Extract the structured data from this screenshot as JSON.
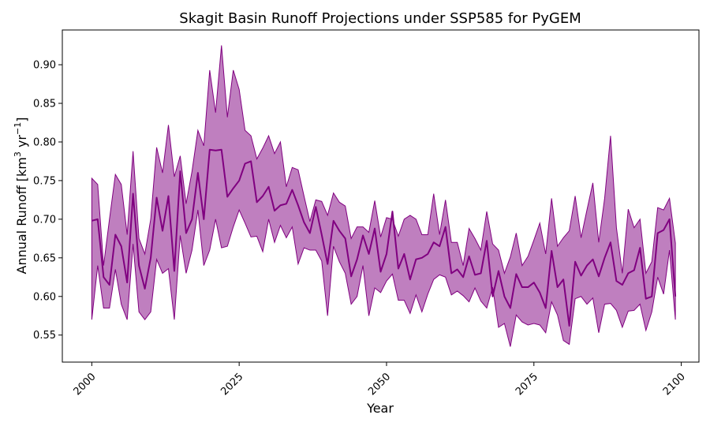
{
  "chart_data": {
    "type": "area",
    "title": "Skagit Basin Runoff Projections under SSP585 for PyGEM",
    "xlabel": "Year",
    "ylabel": {
      "main": "Annual Runoff [km",
      "sup1": "3",
      "mid": " yr",
      "sup2": "−1",
      "end": "]"
    },
    "xlim": [
      1995,
      2103
    ],
    "ylim": [
      0.515,
      0.945
    ],
    "xticks": [
      {
        "value": 2000,
        "label": "2000"
      },
      {
        "value": 2025,
        "label": "2025"
      },
      {
        "value": 2050,
        "label": "2050"
      },
      {
        "value": 2075,
        "label": "2075"
      },
      {
        "value": 2100,
        "label": "2100"
      }
    ],
    "yticks": [
      {
        "value": 0.55,
        "label": "0.55"
      },
      {
        "value": 0.6,
        "label": "0.60"
      },
      {
        "value": 0.65,
        "label": "0.65"
      },
      {
        "value": 0.7,
        "label": "0.70"
      },
      {
        "value": 0.75,
        "label": "0.75"
      },
      {
        "value": 0.8,
        "label": "0.80"
      },
      {
        "value": 0.85,
        "label": "0.85"
      },
      {
        "value": 0.9,
        "label": "0.90"
      }
    ],
    "grid": false,
    "legend": "none",
    "colors": {
      "line": "#800080",
      "band": "#800080",
      "band_opacity": 0.5
    },
    "x": [
      2000,
      2001,
      2002,
      2003,
      2004,
      2005,
      2006,
      2007,
      2008,
      2009,
      2010,
      2011,
      2012,
      2013,
      2014,
      2015,
      2016,
      2017,
      2018,
      2019,
      2020,
      2021,
      2022,
      2023,
      2024,
      2025,
      2026,
      2027,
      2028,
      2029,
      2030,
      2031,
      2032,
      2033,
      2034,
      2035,
      2036,
      2037,
      2038,
      2039,
      2040,
      2041,
      2042,
      2043,
      2044,
      2045,
      2046,
      2047,
      2048,
      2049,
      2050,
      2051,
      2052,
      2053,
      2054,
      2055,
      2056,
      2057,
      2058,
      2059,
      2060,
      2061,
      2062,
      2063,
      2064,
      2065,
      2066,
      2067,
      2068,
      2069,
      2070,
      2071,
      2072,
      2073,
      2074,
      2075,
      2076,
      2077,
      2078,
      2079,
      2080,
      2081,
      2082,
      2083,
      2084,
      2085,
      2086,
      2087,
      2088,
      2089,
      2090,
      2091,
      2092,
      2093,
      2094,
      2095,
      2096,
      2097,
      2098,
      2099
    ],
    "series": [
      {
        "role": "mean",
        "values": [
          0.698,
          0.7,
          0.625,
          0.615,
          0.68,
          0.665,
          0.618,
          0.733,
          0.64,
          0.61,
          0.65,
          0.728,
          0.685,
          0.73,
          0.633,
          0.762,
          0.682,
          0.7,
          0.76,
          0.7,
          0.79,
          0.789,
          0.79,
          0.729,
          0.74,
          0.75,
          0.772,
          0.775,
          0.722,
          0.73,
          0.742,
          0.711,
          0.718,
          0.72,
          0.738,
          0.718,
          0.696,
          0.682,
          0.716,
          0.68,
          0.642,
          0.698,
          0.685,
          0.675,
          0.626,
          0.648,
          0.679,
          0.655,
          0.688,
          0.632,
          0.655,
          0.71,
          0.636,
          0.655,
          0.622,
          0.648,
          0.65,
          0.655,
          0.67,
          0.665,
          0.69,
          0.63,
          0.635,
          0.625,
          0.652,
          0.628,
          0.63,
          0.672,
          0.6,
          0.633,
          0.6,
          0.585,
          0.629,
          0.612,
          0.612,
          0.618,
          0.605,
          0.585,
          0.659,
          0.612,
          0.622,
          0.562,
          0.645,
          0.627,
          0.64,
          0.648,
          0.626,
          0.65,
          0.67,
          0.62,
          0.615,
          0.63,
          0.634,
          0.663,
          0.597,
          0.6,
          0.682,
          0.686,
          0.7,
          0.6
        ]
      },
      {
        "role": "upper",
        "values": [
          0.753,
          0.745,
          0.64,
          0.7,
          0.758,
          0.745,
          0.68,
          0.788,
          0.675,
          0.655,
          0.7,
          0.793,
          0.76,
          0.822,
          0.755,
          0.782,
          0.72,
          0.762,
          0.815,
          0.795,
          0.893,
          0.838,
          0.925,
          0.832,
          0.893,
          0.868,
          0.815,
          0.808,
          0.778,
          0.792,
          0.808,
          0.785,
          0.8,
          0.742,
          0.767,
          0.764,
          0.73,
          0.697,
          0.725,
          0.723,
          0.705,
          0.734,
          0.722,
          0.717,
          0.675,
          0.69,
          0.69,
          0.683,
          0.724,
          0.677,
          0.702,
          0.7,
          0.678,
          0.7,
          0.705,
          0.7,
          0.68,
          0.68,
          0.733,
          0.68,
          0.725,
          0.67,
          0.67,
          0.64,
          0.688,
          0.675,
          0.66,
          0.71,
          0.668,
          0.66,
          0.63,
          0.651,
          0.682,
          0.64,
          0.652,
          0.673,
          0.695,
          0.655,
          0.727,
          0.665,
          0.676,
          0.685,
          0.73,
          0.676,
          0.712,
          0.747,
          0.67,
          0.727,
          0.808,
          0.689,
          0.63,
          0.713,
          0.689,
          0.7,
          0.63,
          0.645,
          0.715,
          0.712,
          0.727,
          0.669
        ]
      },
      {
        "role": "lower",
        "values": [
          0.57,
          0.64,
          0.585,
          0.585,
          0.635,
          0.59,
          0.57,
          0.668,
          0.58,
          0.57,
          0.58,
          0.648,
          0.63,
          0.636,
          0.57,
          0.679,
          0.63,
          0.66,
          0.712,
          0.64,
          0.66,
          0.7,
          0.663,
          0.665,
          0.69,
          0.712,
          0.695,
          0.677,
          0.678,
          0.658,
          0.7,
          0.67,
          0.692,
          0.676,
          0.69,
          0.642,
          0.663,
          0.66,
          0.66,
          0.646,
          0.575,
          0.665,
          0.645,
          0.63,
          0.59,
          0.6,
          0.64,
          0.575,
          0.611,
          0.605,
          0.62,
          0.629,
          0.595,
          0.595,
          0.578,
          0.602,
          0.58,
          0.603,
          0.622,
          0.628,
          0.625,
          0.602,
          0.607,
          0.601,
          0.593,
          0.611,
          0.594,
          0.585,
          0.612,
          0.56,
          0.565,
          0.535,
          0.576,
          0.567,
          0.563,
          0.565,
          0.563,
          0.553,
          0.593,
          0.576,
          0.543,
          0.538,
          0.597,
          0.6,
          0.59,
          0.598,
          0.553,
          0.59,
          0.591,
          0.582,
          0.56,
          0.581,
          0.582,
          0.59,
          0.556,
          0.58,
          0.625,
          0.603,
          0.66,
          0.57
        ]
      }
    ]
  }
}
